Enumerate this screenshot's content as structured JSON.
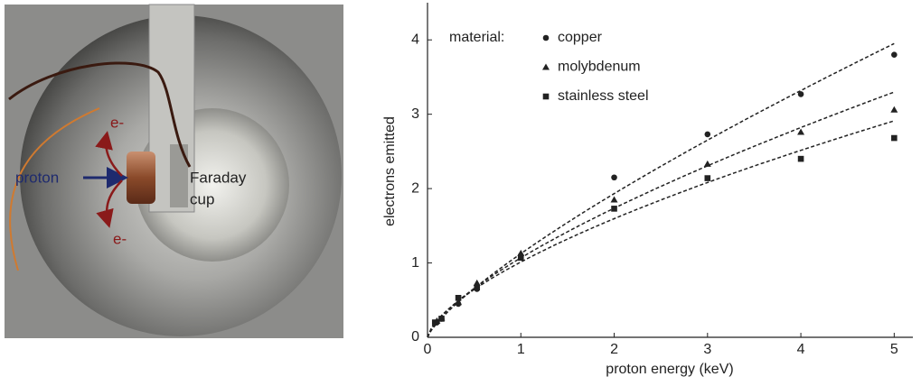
{
  "photo": {
    "electron_labels": [
      "e-",
      "e-"
    ],
    "proton_label": "proton",
    "detector_label": [
      "Faraday",
      "cup"
    ]
  },
  "chart_data": {
    "type": "scatter",
    "x_label": "proton energy (keV)",
    "y_label": "electrons emitted",
    "legend_title": "material:",
    "legend_position": "upper left",
    "xlim": [
      0,
      5.2
    ],
    "ylim": [
      0,
      4.5
    ],
    "xticks": [
      0,
      1,
      2,
      3,
      4,
      5
    ],
    "yticks": [
      0,
      1,
      2,
      3,
      4
    ],
    "fit_line": "dashed",
    "series": [
      {
        "name": "copper",
        "color": "#222222",
        "marker": "circle",
        "x": [
          0.1,
          0.15,
          0.33,
          0.53,
          1,
          2,
          3,
          4,
          5
        ],
        "values": [
          0.2,
          0.25,
          0.45,
          0.65,
          1.1,
          2.15,
          2.73,
          3.27,
          3.8
        ]
      },
      {
        "name": "molybdenum",
        "color": "#222222",
        "marker": "triangle",
        "x": [
          0.1,
          0.15,
          0.33,
          0.53,
          1,
          2,
          3,
          4,
          5
        ],
        "values": [
          0.22,
          0.26,
          0.47,
          0.73,
          1.13,
          1.85,
          2.33,
          2.76,
          3.06
        ]
      },
      {
        "name": "stainless steel",
        "color": "#222222",
        "marker": "square",
        "x": [
          0.08,
          0.15,
          0.33,
          0.53,
          1,
          2,
          3,
          4,
          5
        ],
        "values": [
          0.2,
          0.25,
          0.53,
          0.67,
          1.07,
          1.73,
          2.14,
          2.4,
          2.68
        ]
      }
    ]
  }
}
